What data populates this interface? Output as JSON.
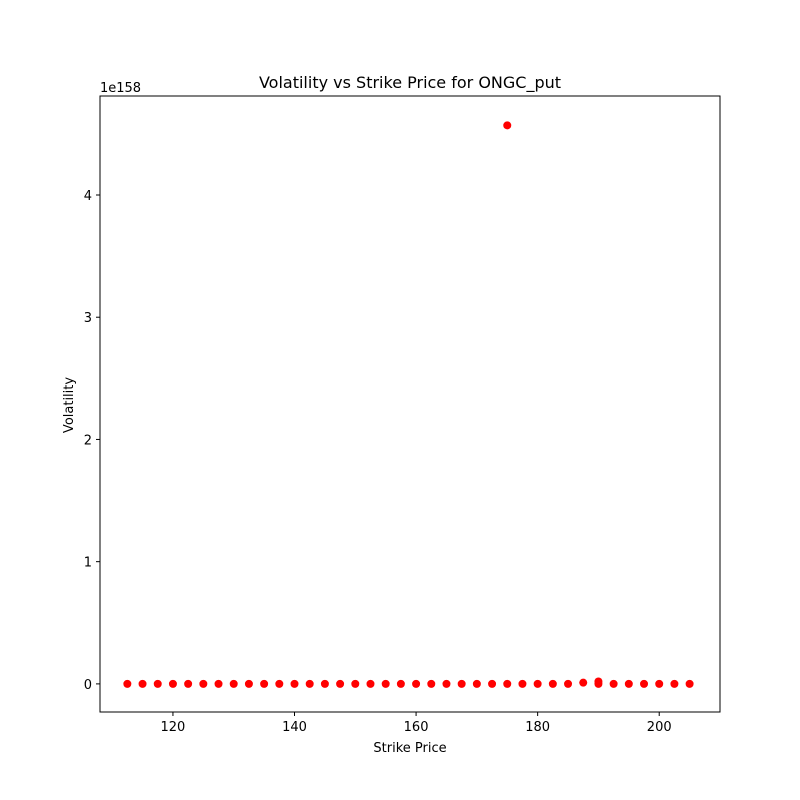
{
  "chart_data": {
    "type": "scatter",
    "title": "Volatility vs Strike Price for ONGC_put",
    "xlabel": "Strike Price",
    "ylabel": "Volatility",
    "y_offset_label": "1e158",
    "xlim": [
      108,
      210
    ],
    "ylim": [
      -0.23,
      4.81
    ],
    "x_ticks": [
      120,
      140,
      160,
      180,
      200
    ],
    "y_ticks": [
      0,
      1,
      2,
      3,
      4
    ],
    "grid": false,
    "marker_color": "#ff0000",
    "series": [
      {
        "points": [
          [
            112.5,
            0
          ],
          [
            115,
            0
          ],
          [
            117.5,
            0
          ],
          [
            120,
            0
          ],
          [
            122.5,
            0
          ],
          [
            125,
            0
          ],
          [
            127.5,
            0
          ],
          [
            130,
            0
          ],
          [
            132.5,
            0
          ],
          [
            135,
            0
          ],
          [
            137.5,
            0
          ],
          [
            140,
            0
          ],
          [
            142.5,
            0
          ],
          [
            145,
            0
          ],
          [
            147.5,
            0
          ],
          [
            150,
            0
          ],
          [
            152.5,
            0
          ],
          [
            155,
            0
          ],
          [
            157.5,
            0
          ],
          [
            160,
            0
          ],
          [
            162.5,
            0
          ],
          [
            165,
            0
          ],
          [
            167.5,
            0
          ],
          [
            170,
            0
          ],
          [
            172.5,
            0
          ],
          [
            175,
            4.57
          ],
          [
            175,
            0
          ],
          [
            177.5,
            0
          ],
          [
            180,
            0
          ],
          [
            182.5,
            0
          ],
          [
            185,
            0
          ],
          [
            187.5,
            0.01
          ],
          [
            190,
            0.02
          ],
          [
            190,
            0
          ],
          [
            192.5,
            0
          ],
          [
            195,
            0
          ],
          [
            197.5,
            0
          ],
          [
            200,
            0
          ],
          [
            202.5,
            0
          ],
          [
            205,
            0
          ]
        ]
      }
    ]
  }
}
